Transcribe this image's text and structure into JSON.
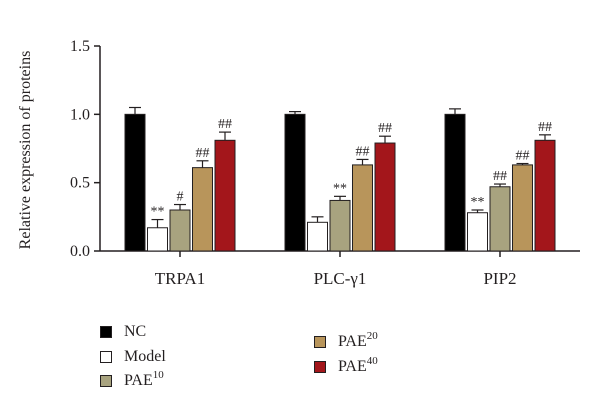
{
  "chart_data": {
    "type": "bar",
    "ylabel": "Relative expression of proteins",
    "ylim": [
      0,
      1.5
    ],
    "yticks": [
      "0.0",
      "0.5",
      "1.0",
      "1.5"
    ],
    "categories": [
      "TRPA1",
      "PLC-γ1",
      "PIP2"
    ],
    "series": [
      {
        "name": "NC",
        "base": "NC",
        "sup": "",
        "color": "#000000",
        "values": [
          1.0,
          1.0,
          1.0
        ],
        "errors": [
          0.05,
          0.02,
          0.04
        ],
        "marks": [
          "",
          "",
          ""
        ]
      },
      {
        "name": "Model",
        "base": "Model",
        "sup": "",
        "color": "#ffffff",
        "values": [
          0.17,
          0.21,
          0.28
        ],
        "errors": [
          0.06,
          0.04,
          0.02
        ],
        "marks": [
          "**",
          "",
          "**"
        ]
      },
      {
        "name": "PAE10",
        "base": "PAE",
        "sup": "10",
        "color": "#a8a37f",
        "values": [
          0.3,
          0.37,
          0.47
        ],
        "errors": [
          0.04,
          0.03,
          0.02
        ],
        "marks": [
          "#",
          "**",
          "##"
        ]
      },
      {
        "name": "PAE20",
        "base": "PAE",
        "sup": "20",
        "color": "#b8955b",
        "values": [
          0.61,
          0.63,
          0.63
        ],
        "errors": [
          0.05,
          0.04,
          0.01
        ],
        "marks": [
          "##",
          "##",
          "##"
        ]
      },
      {
        "name": "PAE40",
        "base": "PAE",
        "sup": "40",
        "color": "#a3161b",
        "values": [
          0.81,
          0.79,
          0.81
        ],
        "errors": [
          0.06,
          0.05,
          0.04
        ],
        "marks": [
          "##",
          "##",
          "##"
        ]
      }
    ],
    "legend_position": "bottom-left"
  }
}
